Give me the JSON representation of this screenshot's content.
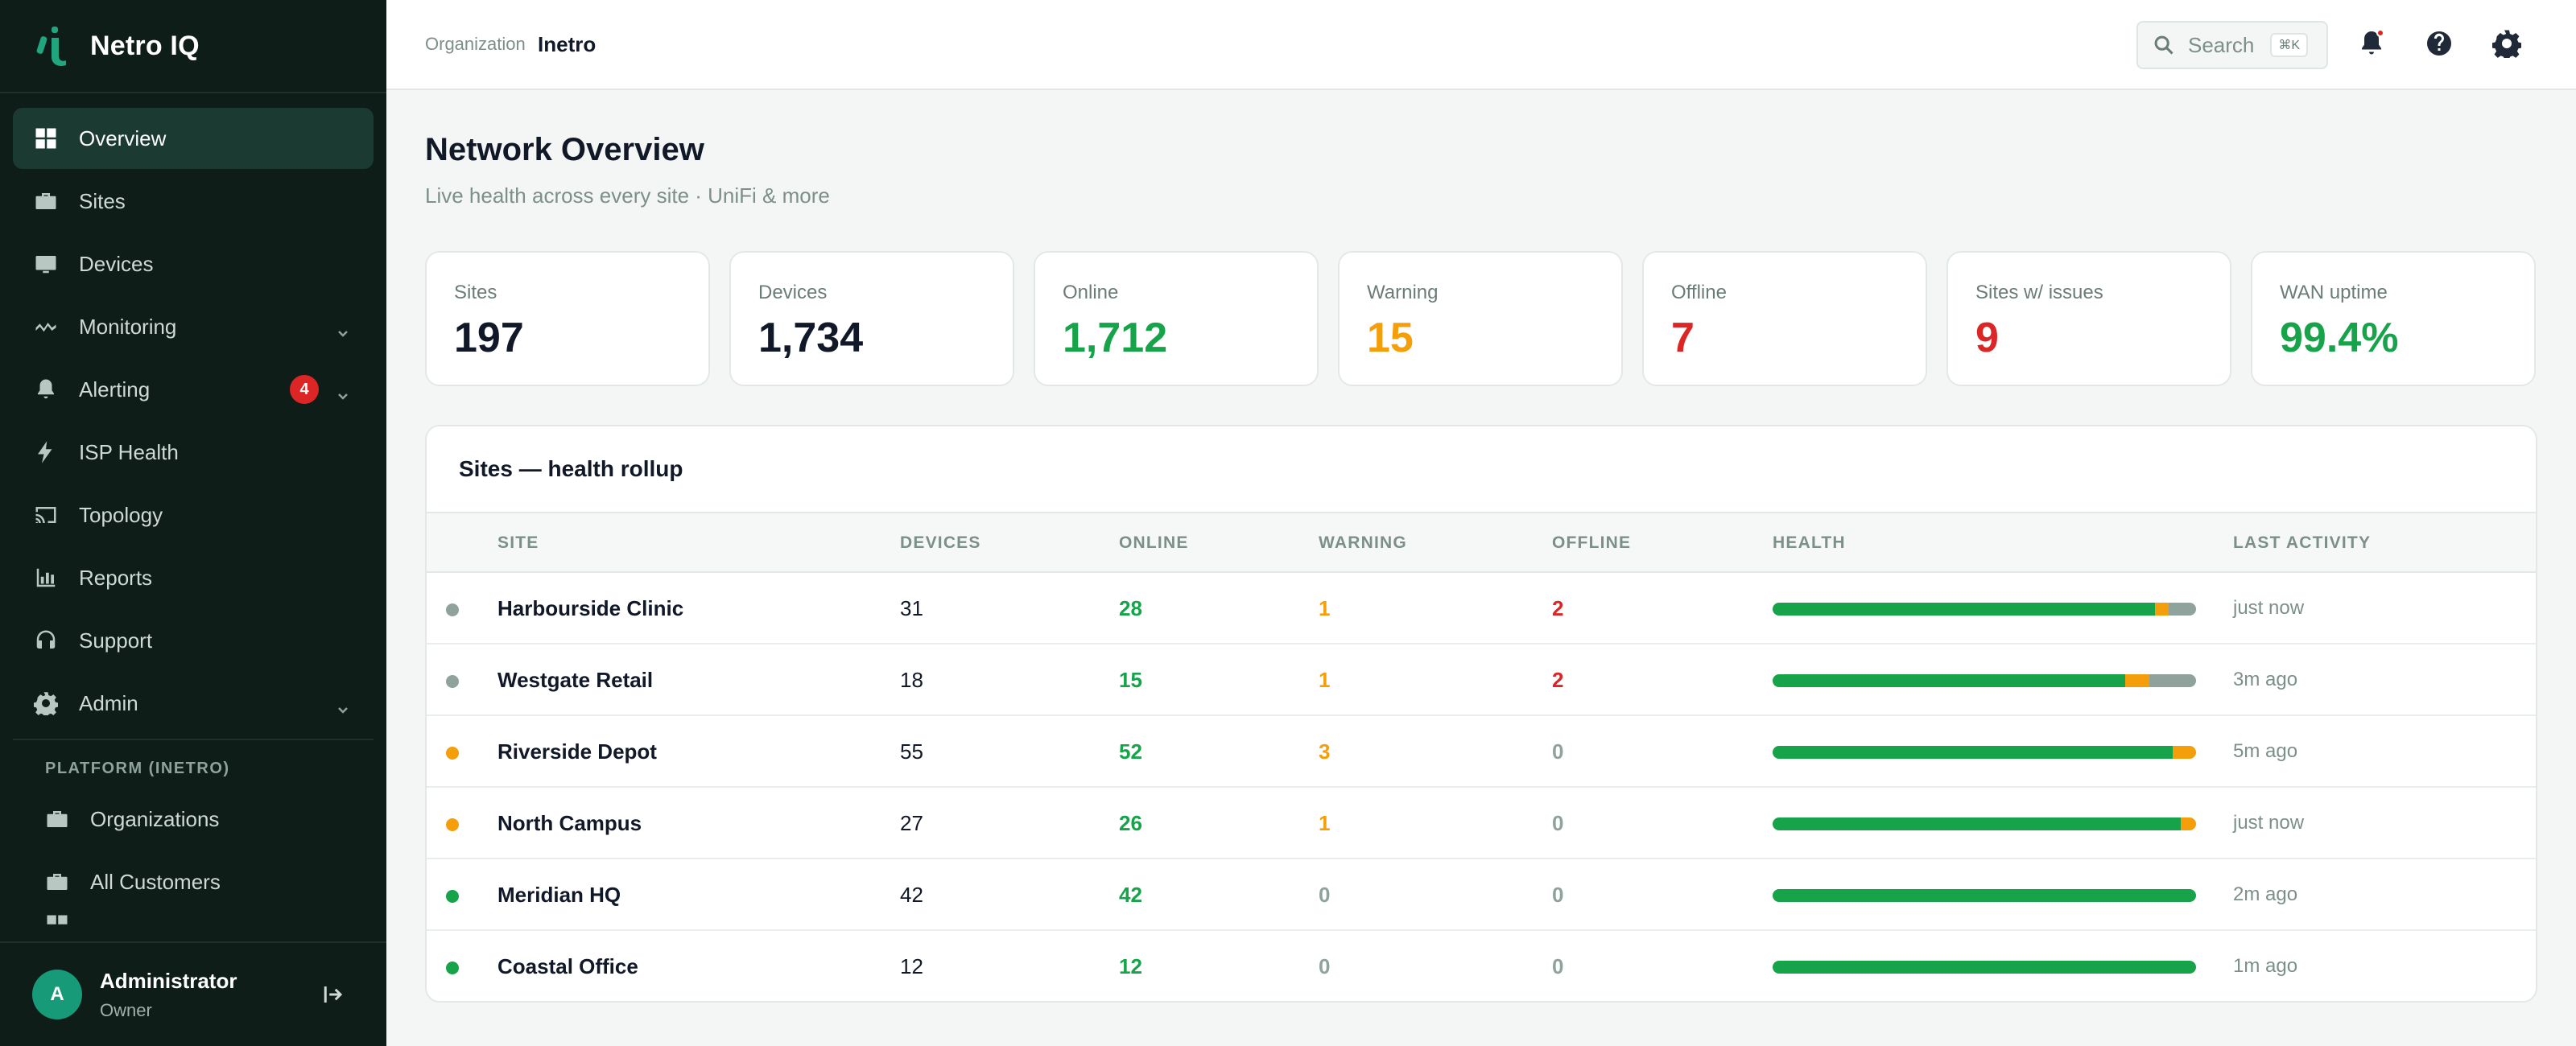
{
  "app": {
    "name": "Netro IQ"
  },
  "colors": {
    "green": "#16a34a",
    "orange": "#f59e0b",
    "red": "#dc2626",
    "gray": "#8fa39c",
    "dark": "#111827"
  },
  "sidebar": {
    "items": [
      {
        "label": "Overview",
        "icon": "grid-icon",
        "active": true
      },
      {
        "label": "Sites",
        "icon": "briefcase-icon"
      },
      {
        "label": "Devices",
        "icon": "monitor-icon"
      },
      {
        "label": "Monitoring",
        "icon": "activity-icon",
        "chevron": true
      },
      {
        "label": "Alerting",
        "icon": "bell-icon",
        "chevron": true,
        "badge": "4"
      },
      {
        "label": "ISP Health",
        "icon": "bolt-icon"
      },
      {
        "label": "Topology",
        "icon": "cast-icon"
      },
      {
        "label": "Reports",
        "icon": "bar-chart-icon"
      },
      {
        "label": "Support",
        "icon": "headset-icon"
      },
      {
        "label": "Admin",
        "icon": "gear-icon",
        "chevron": true
      }
    ],
    "section_label": "PLATFORM (INETRO)",
    "platform_items": [
      {
        "label": "Organizations",
        "icon": "briefcase-icon"
      },
      {
        "label": "All Customers",
        "icon": "briefcase-icon"
      }
    ]
  },
  "user": {
    "initial": "A",
    "name": "Administrator",
    "role": "Owner"
  },
  "topbar": {
    "org_label": "Organization",
    "org_name": "Inetro",
    "search_label": "Search",
    "search_shortcut": "⌘K"
  },
  "page": {
    "title": "Network Overview",
    "subtitle": "Live health across every site · UniFi & more"
  },
  "stats": [
    {
      "label": "Sites",
      "value": "197",
      "color": "#111827"
    },
    {
      "label": "Devices",
      "value": "1,734",
      "color": "#111827"
    },
    {
      "label": "Online",
      "value": "1,712",
      "color": "#16a34a"
    },
    {
      "label": "Warning",
      "value": "15",
      "color": "#f59e0b"
    },
    {
      "label": "Offline",
      "value": "7",
      "color": "#dc2626"
    },
    {
      "label": "Sites w/ issues",
      "value": "9",
      "color": "#dc2626"
    },
    {
      "label": "WAN uptime",
      "value": "99.4%",
      "color": "#16a34a"
    }
  ],
  "table": {
    "title": "Sites — health rollup",
    "columns": [
      "SITE",
      "DEVICES",
      "ONLINE",
      "WARNING",
      "OFFLINE",
      "HEALTH",
      "LAST ACTIVITY"
    ],
    "rows": [
      {
        "status": "gray",
        "site": "Harbourside Clinic",
        "devices": "31",
        "online": "28",
        "warning": "1",
        "offline": "2",
        "activity": "just now"
      },
      {
        "status": "gray",
        "site": "Westgate Retail",
        "devices": "18",
        "online": "15",
        "warning": "1",
        "offline": "2",
        "activity": "3m ago"
      },
      {
        "status": "orange",
        "site": "Riverside Depot",
        "devices": "55",
        "online": "52",
        "warning": "3",
        "offline": "0",
        "activity": "5m ago"
      },
      {
        "status": "orange",
        "site": "North Campus",
        "devices": "27",
        "online": "26",
        "warning": "1",
        "offline": "0",
        "activity": "just now"
      },
      {
        "status": "green",
        "site": "Meridian HQ",
        "devices": "42",
        "online": "42",
        "warning": "0",
        "offline": "0",
        "activity": "2m ago"
      },
      {
        "status": "green",
        "site": "Coastal Office",
        "devices": "12",
        "online": "12",
        "warning": "0",
        "offline": "0",
        "activity": "1m ago"
      }
    ]
  }
}
